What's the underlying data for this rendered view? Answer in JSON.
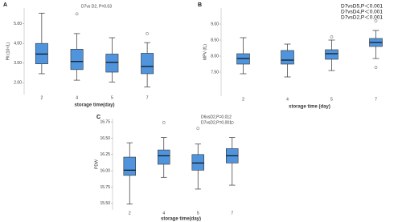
{
  "chart_data": [
    {
      "type": "box",
      "panel": "A",
      "annotations": [
        "D7vs D2, P=0.03"
      ],
      "ylabel": "Plt (10⁹/L)",
      "xlabel": "storage time(day)",
      "categories": [
        "2",
        "4",
        "5",
        "7"
      ],
      "color": "#4f94dc",
      "ylim": [
        1.4,
        5.8
      ],
      "yticks": [
        {
          "value": 2,
          "label": "2.00"
        },
        {
          "value": 3,
          "label": "3.00"
        },
        {
          "value": 4,
          "label": "4.00"
        },
        {
          "value": 5,
          "label": "5.00"
        }
      ],
      "boxes": [
        {
          "low": 2.46,
          "q1": 2.96,
          "median": 3.46,
          "q3": 4.0,
          "high": 5.54,
          "outliers": []
        },
        {
          "low": 2.13,
          "q1": 2.67,
          "median": 3.08,
          "q3": 3.71,
          "high": 4.5,
          "outliers": [
            5.5
          ]
        },
        {
          "low": 2.04,
          "q1": 2.54,
          "median": 3.04,
          "q3": 3.46,
          "high": 4.29,
          "outliers": []
        },
        {
          "low": 1.79,
          "q1": 2.46,
          "median": 2.83,
          "q3": 3.5,
          "high": 4.04,
          "outliers": [
            4.5
          ]
        }
      ]
    },
    {
      "type": "box",
      "panel": "B",
      "annotations": [
        "D7vsD5,P＜0.001",
        "D7vsD4,P＜0.001",
        "D7vsD2,P＜0.001"
      ],
      "ylabel": "MPV (fL)",
      "xlabel": "storage time (day)",
      "categories": [
        "2",
        "4",
        "5",
        "7"
      ],
      "color": "#4f94dc",
      "ylim": [
        6.75,
        9.5
      ],
      "yticks": [
        {
          "value": 7.5,
          "label": "7.50"
        },
        {
          "value": 8,
          "label": "8.00"
        },
        {
          "value": 8.5,
          "label": "8.50"
        },
        {
          "value": 9,
          "label": "9.00"
        }
      ],
      "boxes": [
        {
          "low": 7.45,
          "q1": 7.75,
          "median": 7.925,
          "q3": 8.075,
          "high": 8.575,
          "outliers": []
        },
        {
          "low": 7.35,
          "q1": 7.75,
          "median": 7.875,
          "q3": 8.175,
          "high": 8.375,
          "outliers": []
        },
        {
          "low": 7.55,
          "q1": 7.9,
          "median": 8.075,
          "q3": 8.2,
          "high": 8.5,
          "outliers": [
            8.6
          ]
        },
        {
          "low": 7.925,
          "q1": 8.3,
          "median": 8.425,
          "q3": 8.55,
          "high": 8.8,
          "outliers": [
            9.1,
            7.65
          ]
        }
      ]
    },
    {
      "type": "box",
      "panel": "C",
      "annotations": [
        "D6vsD2,P=0.012",
        "D7vsD2,P=0.001"
      ],
      "ylabel": "PDW",
      "xlabel": "storage time(day)",
      "categories": [
        "2",
        "4",
        "5",
        "7"
      ],
      "color": "#4f94dc",
      "ylim": [
        15.4,
        16.8
      ],
      "yticks": [
        {
          "value": 15.5,
          "label": "15.50"
        },
        {
          "value": 15.75,
          "label": "15.75"
        },
        {
          "value": 16,
          "label": "16.00"
        },
        {
          "value": 16.25,
          "label": "16.25"
        },
        {
          "value": 16.5,
          "label": "16.50"
        },
        {
          "value": 16.75,
          "label": "16.75"
        }
      ],
      "boxes": [
        {
          "low": 15.49,
          "q1": 15.93,
          "median": 16.01,
          "q3": 16.21,
          "high": 16.43,
          "outliers": []
        },
        {
          "low": 15.9,
          "q1": 16.1,
          "median": 16.23,
          "q3": 16.32,
          "high": 16.51,
          "outliers": [
            16.74
          ]
        },
        {
          "low": 15.72,
          "q1": 16.01,
          "median": 16.12,
          "q3": 16.25,
          "high": 16.41,
          "outliers": [
            16.65
          ]
        },
        {
          "low": 15.78,
          "q1": 16.12,
          "median": 16.23,
          "q3": 16.34,
          "high": 16.51,
          "outliers": [
            16.74
          ]
        }
      ]
    }
  ]
}
